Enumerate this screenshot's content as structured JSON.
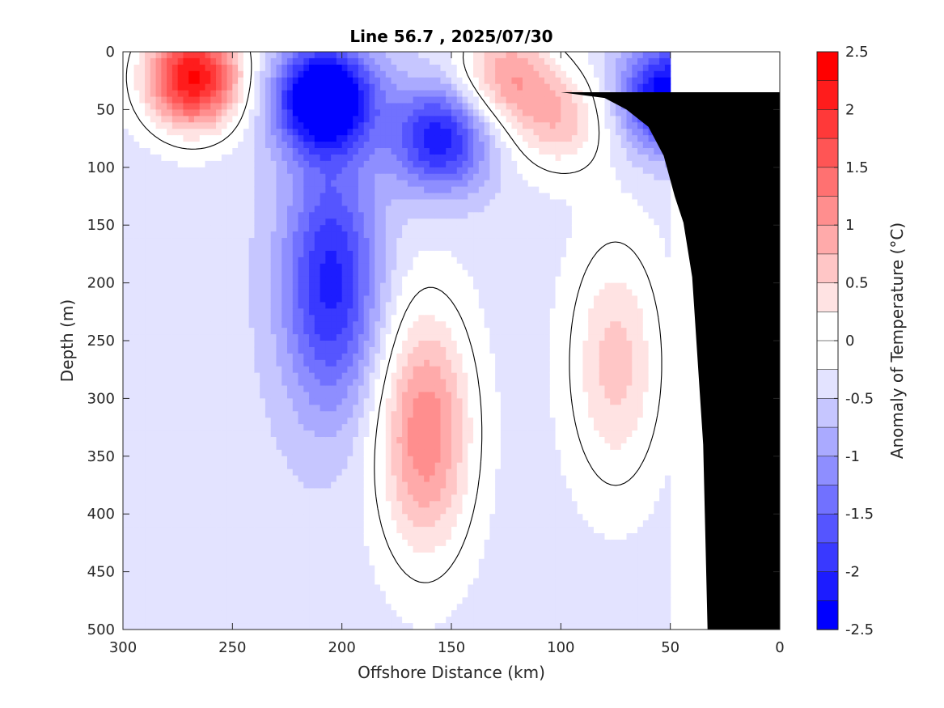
{
  "chart_data": {
    "type": "heatmap",
    "title": "Line 56.7 , 2025/07/30",
    "xlabel": "Offshore Distance (km)",
    "ylabel": "Depth (m)",
    "xlim": [
      300,
      0
    ],
    "ylim": [
      0,
      500
    ],
    "x_reversed": true,
    "y_reversed": true,
    "x_ticks": [
      "300",
      "250",
      "200",
      "150",
      "100",
      "50",
      "0"
    ],
    "y_ticks": [
      "0",
      "50",
      "100",
      "150",
      "200",
      "250",
      "300",
      "350",
      "400",
      "450",
      "500"
    ],
    "colorbar": {
      "label": "Anomaly of Temperature (°C)",
      "range": [
        -2.5,
        2.5
      ],
      "ticks": [
        "2.5",
        "2",
        "1.5",
        "1",
        "0.5",
        "0",
        "-0.5",
        "-1",
        "-1.5",
        "-2",
        "-2.5"
      ],
      "levels": [
        {
          "min": 2.25,
          "max": 2.5,
          "color": "#ff0000"
        },
        {
          "min": 2.0,
          "max": 2.25,
          "color": "#ff1c1c"
        },
        {
          "min": 1.75,
          "max": 2.0,
          "color": "#ff3939"
        },
        {
          "min": 1.5,
          "max": 1.75,
          "color": "#ff5555"
        },
        {
          "min": 1.25,
          "max": 1.5,
          "color": "#ff7171"
        },
        {
          "min": 1.0,
          "max": 1.25,
          "color": "#ff8e8e"
        },
        {
          "min": 0.75,
          "max": 1.0,
          "color": "#ffaaaa"
        },
        {
          "min": 0.5,
          "max": 0.75,
          "color": "#ffc6c6"
        },
        {
          "min": 0.25,
          "max": 0.5,
          "color": "#ffe3e3"
        },
        {
          "min": 0.0,
          "max": 0.25,
          "color": "#ffffff"
        },
        {
          "min": -0.25,
          "max": 0.0,
          "color": "#ffffff"
        },
        {
          "min": -0.5,
          "max": -0.25,
          "color": "#e3e3ff"
        },
        {
          "min": -0.75,
          "max": -0.5,
          "color": "#c6c6ff"
        },
        {
          "min": -1.0,
          "max": -0.75,
          "color": "#aaaaff"
        },
        {
          "min": -1.25,
          "max": -1.0,
          "color": "#8e8eff"
        },
        {
          "min": -1.5,
          "max": -1.25,
          "color": "#7171ff"
        },
        {
          "min": -1.75,
          "max": -1.5,
          "color": "#5555ff"
        },
        {
          "min": -2.0,
          "max": -1.75,
          "color": "#3939ff"
        },
        {
          "min": -2.25,
          "max": -2.0,
          "color": "#1c1cff"
        },
        {
          "min": -2.5,
          "max": -2.25,
          "color": "#0000ff"
        }
      ]
    },
    "features": [
      {
        "name": "warm-core-near-shore",
        "x": 268,
        "y": 22,
        "anomaly": 2.3
      },
      {
        "name": "cold-core-offshore",
        "x": 208,
        "y": 40,
        "anomaly": -2.3
      },
      {
        "name": "cold-core-coastal",
        "x": 50,
        "y": 38,
        "anomaly": -1.8
      },
      {
        "name": "cold-mid-1",
        "x": 155,
        "y": 75,
        "anomaly": -1.4
      },
      {
        "name": "warm-surface-1",
        "x": 125,
        "y": 20,
        "anomaly": 0.9
      },
      {
        "name": "warm-surface-2",
        "x": 100,
        "y": 60,
        "anomaly": 0.6
      },
      {
        "name": "warm-tongue-deep",
        "x": 162,
        "y": 330,
        "anomaly": 1.2
      },
      {
        "name": "warm-deep-coastal",
        "x": 75,
        "y": 270,
        "anomaly": 0.6
      },
      {
        "name": "cold-mid-2",
        "x": 205,
        "y": 200,
        "anomaly": -1.3
      }
    ],
    "bathymetry": [
      {
        "x": 33,
        "y": 500
      },
      {
        "x": 35,
        "y": 340
      },
      {
        "x": 40,
        "y": 195
      },
      {
        "x": 44,
        "y": 148
      },
      {
        "x": 48,
        "y": 125
      },
      {
        "x": 53,
        "y": 90
      },
      {
        "x": 60,
        "y": 65
      },
      {
        "x": 70,
        "y": 50
      },
      {
        "x": 80,
        "y": 40
      },
      {
        "x": 100,
        "y": 35
      },
      {
        "x": 0,
        "y": 35
      },
      {
        "x": 0,
        "y": 500
      }
    ],
    "data_extent_x": [
      300,
      50
    ],
    "grid": false,
    "legend": "colorbar-right"
  }
}
